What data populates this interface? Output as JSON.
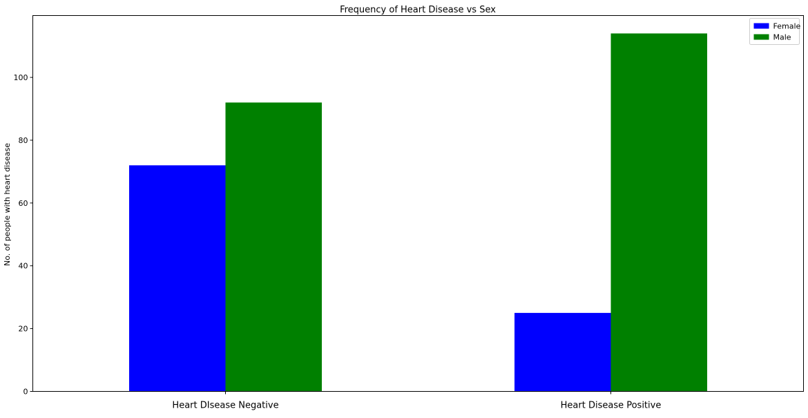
{
  "chart_data": {
    "type": "bar",
    "title": "Frequency of Heart Disease vs Sex",
    "xlabel": "",
    "ylabel": "No. of people with heart disease",
    "categories": [
      "Heart DIsease Negative",
      "Heart Disease Positive"
    ],
    "series": [
      {
        "name": "Female",
        "values": [
          72,
          25
        ],
        "color": "#0000ff"
      },
      {
        "name": "Male",
        "values": [
          92,
          114
        ],
        "color": "#008000"
      }
    ],
    "ylim": [
      0,
      119.7
    ],
    "yticks": [
      0,
      20,
      40,
      60,
      80,
      100
    ],
    "grid": false,
    "legend_position": "top-right"
  }
}
